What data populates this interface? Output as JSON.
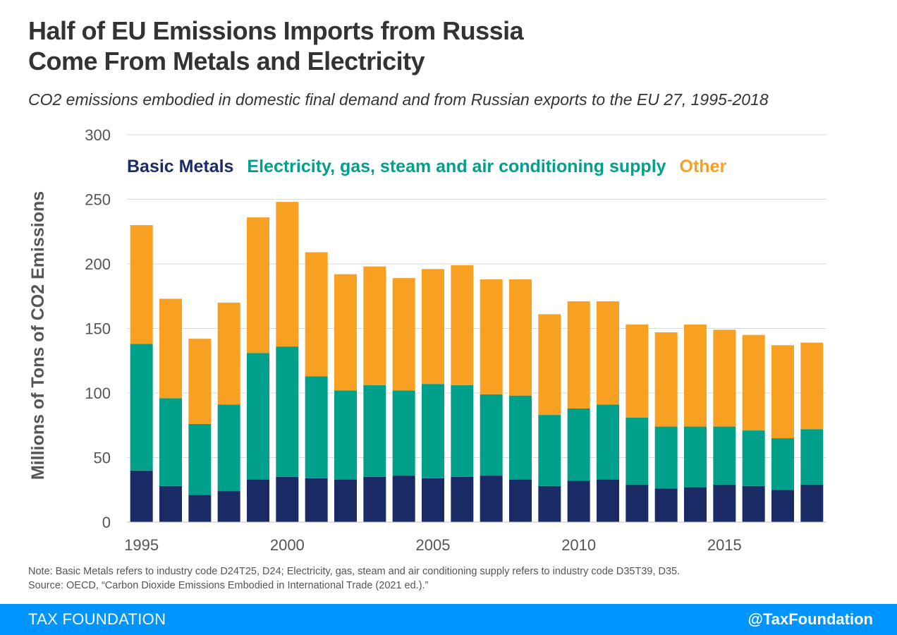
{
  "title": {
    "line1": "Half of EU Emissions Imports from Russia",
    "line2": "Come From Metals and Electricity"
  },
  "subtitle": "CO2 emissions embodied in domestic final demand and from Russian exports to the EU 27, 1995-2018",
  "colors": {
    "metals": "#1b2b66",
    "electricity": "#00a08a",
    "other": "#f7a021",
    "axis_text": "#555555",
    "grid": "#d9d9d9",
    "footer": "#0094ff"
  },
  "chart_data": {
    "type": "bar",
    "stacked": true,
    "ylabel": "Millions of Tons of CO2 Emissions",
    "xlabel": "",
    "ylim": [
      0,
      300
    ],
    "yticks": [
      0,
      50,
      100,
      150,
      200,
      250,
      300
    ],
    "xtick_labels": [
      "1995",
      "2000",
      "2005",
      "2010",
      "2015"
    ],
    "grid": true,
    "legend_position": "top",
    "categories": [
      "1995",
      "1996",
      "1997",
      "1998",
      "1999",
      "2000",
      "2001",
      "2002",
      "2003",
      "2004",
      "2005",
      "2006",
      "2007",
      "2008",
      "2009",
      "2010",
      "2011",
      "2012",
      "2013",
      "2014",
      "2015",
      "2016",
      "2017",
      "2018"
    ],
    "series": [
      {
        "name": "Basic Metals",
        "color": "#1b2b66",
        "values": [
          40,
          28,
          21,
          24,
          33,
          35,
          34,
          33,
          35,
          36,
          34,
          35,
          36,
          33,
          28,
          32,
          33,
          29,
          26,
          27,
          29,
          28,
          25,
          29
        ]
      },
      {
        "name": "Electricity, gas, steam and air conditioning supply",
        "color": "#00a08a",
        "values": [
          98,
          68,
          55,
          67,
          98,
          101,
          79,
          69,
          71,
          66,
          73,
          71,
          63,
          65,
          55,
          56,
          58,
          52,
          48,
          47,
          45,
          43,
          40,
          43
        ]
      },
      {
        "name": "Other",
        "color": "#f7a021",
        "values": [
          92,
          77,
          66,
          79,
          105,
          112,
          96,
          90,
          92,
          87,
          89,
          93,
          89,
          90,
          78,
          83,
          80,
          72,
          73,
          79,
          75,
          74,
          72,
          67
        ]
      }
    ]
  },
  "note": "Note: Basic Metals refers to industry code D24T25, D24; Electricity, gas, steam and air conditioning supply refers to industry code   D35T39, D35.",
  "source": "Source: OECD, “Carbon Dioxide Emissions Embodied in International Trade (2021 ed.).”",
  "footer": {
    "brand": "TAX FOUNDATION",
    "handle": "@TaxFoundation"
  }
}
